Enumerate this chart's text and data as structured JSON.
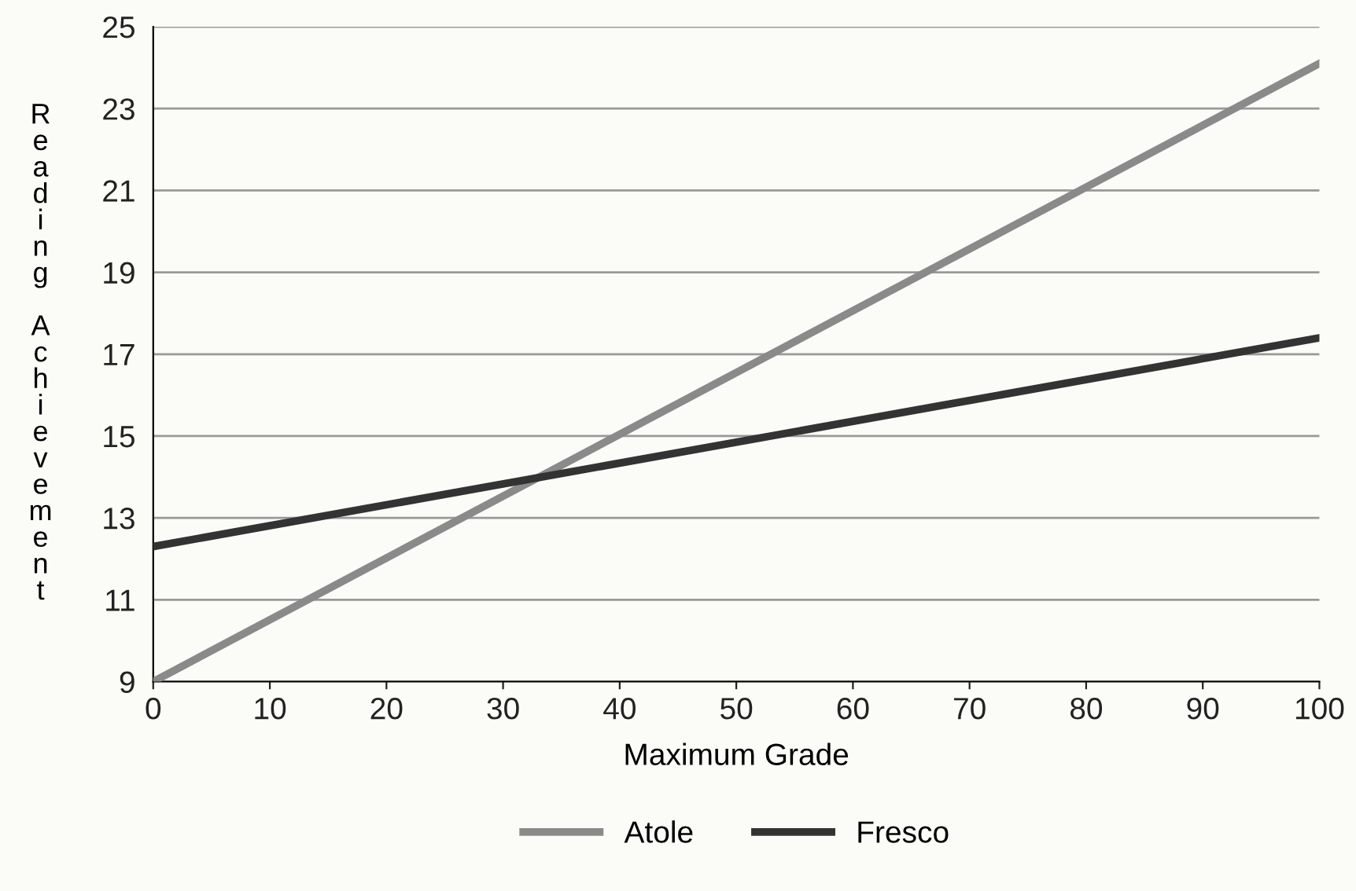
{
  "chart_data": {
    "type": "line",
    "xlabel": "Maximum Grade",
    "ylabel": "Reading Achievement",
    "x": [
      0,
      100
    ],
    "series": [
      {
        "name": "Atole",
        "color": "#8a8a8a",
        "values": [
          9.0,
          24.1
        ]
      },
      {
        "name": "Fresco",
        "color": "#333333",
        "values": [
          12.3,
          17.4
        ]
      }
    ],
    "xlim": [
      0,
      100
    ],
    "xticks": [
      0,
      10,
      20,
      30,
      40,
      50,
      60,
      70,
      80,
      90,
      100
    ],
    "ylim": [
      9,
      25
    ],
    "yticks": [
      9,
      11,
      13,
      15,
      17,
      19,
      21,
      23,
      25
    ],
    "grid": "y",
    "legend": "bottom",
    "marker": "none",
    "line_style": "solid"
  }
}
